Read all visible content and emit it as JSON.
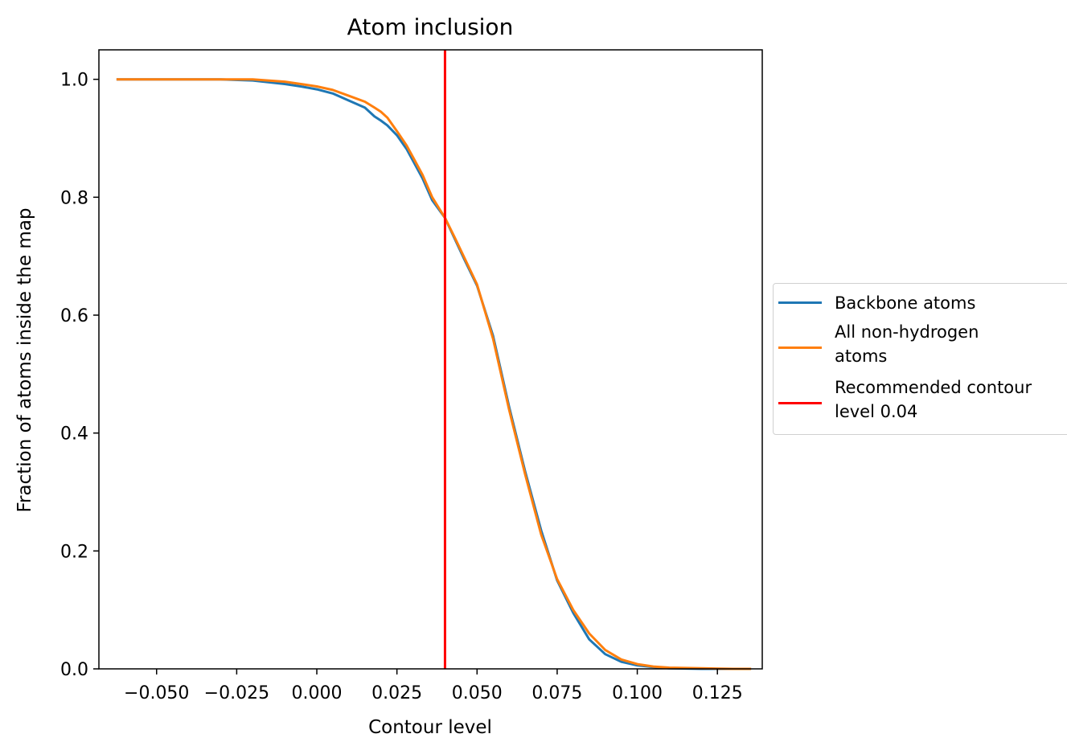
{
  "chart_data": {
    "type": "line",
    "title": "Atom inclusion",
    "xlabel": "Contour level",
    "ylabel": "Fraction of atoms inside the map",
    "xlim": [
      -0.068,
      0.139
    ],
    "ylim": [
      0.0,
      1.05
    ],
    "xticks": [
      -0.05,
      -0.025,
      0.0,
      0.025,
      0.05,
      0.075,
      0.1,
      0.125
    ],
    "xtick_labels": [
      "−0.050",
      "−0.025",
      "0.000",
      "0.025",
      "0.050",
      "0.075",
      "0.100",
      "0.125"
    ],
    "yticks": [
      0.0,
      0.2,
      0.4,
      0.6,
      0.8,
      1.0
    ],
    "ytick_labels": [
      "0.0",
      "0.2",
      "0.4",
      "0.6",
      "0.8",
      "1.0"
    ],
    "grid": false,
    "legend_placement": "outside-right",
    "series": [
      {
        "name": "Backbone atoms",
        "color": "#1f77b4",
        "x": [
          -0.0625,
          -0.05,
          -0.04,
          -0.03,
          -0.02,
          -0.01,
          -0.005,
          0.0,
          0.005,
          0.01,
          0.015,
          0.018,
          0.02,
          0.022,
          0.025,
          0.028,
          0.03,
          0.033,
          0.036,
          0.04,
          0.043,
          0.046,
          0.05,
          0.055,
          0.06,
          0.065,
          0.07,
          0.075,
          0.08,
          0.085,
          0.09,
          0.095,
          0.1,
          0.105,
          0.11,
          0.12,
          0.13,
          0.1355
        ],
        "y": [
          1.0,
          1.0,
          1.0,
          1.0,
          0.998,
          0.992,
          0.988,
          0.983,
          0.976,
          0.964,
          0.952,
          0.937,
          0.93,
          0.922,
          0.905,
          0.882,
          0.862,
          0.832,
          0.795,
          0.765,
          0.73,
          0.695,
          0.65,
          0.565,
          0.445,
          0.335,
          0.235,
          0.15,
          0.095,
          0.05,
          0.025,
          0.012,
          0.006,
          0.003,
          0.001,
          0.0,
          0.0,
          0.0
        ]
      },
      {
        "name": "All non-hydrogen\n atoms",
        "color": "#ff7f0e",
        "x": [
          -0.0625,
          -0.05,
          -0.04,
          -0.03,
          -0.02,
          -0.01,
          -0.005,
          0.0,
          0.005,
          0.01,
          0.015,
          0.018,
          0.02,
          0.022,
          0.025,
          0.028,
          0.03,
          0.033,
          0.036,
          0.04,
          0.043,
          0.046,
          0.05,
          0.055,
          0.06,
          0.065,
          0.07,
          0.075,
          0.08,
          0.085,
          0.09,
          0.095,
          0.1,
          0.105,
          0.11,
          0.12,
          0.13,
          0.1355
        ],
        "y": [
          1.0,
          1.0,
          1.0,
          1.0,
          1.0,
          0.996,
          0.992,
          0.988,
          0.982,
          0.972,
          0.962,
          0.952,
          0.945,
          0.935,
          0.912,
          0.888,
          0.868,
          0.838,
          0.8,
          0.765,
          0.732,
          0.698,
          0.652,
          0.56,
          0.44,
          0.33,
          0.228,
          0.152,
          0.1,
          0.06,
          0.032,
          0.016,
          0.008,
          0.004,
          0.002,
          0.001,
          0.0,
          0.0
        ]
      },
      {
        "name": "Recommended contour\n level 0.04",
        "color": "#ff0000",
        "type": "vline",
        "x": [
          0.04
        ]
      }
    ]
  }
}
